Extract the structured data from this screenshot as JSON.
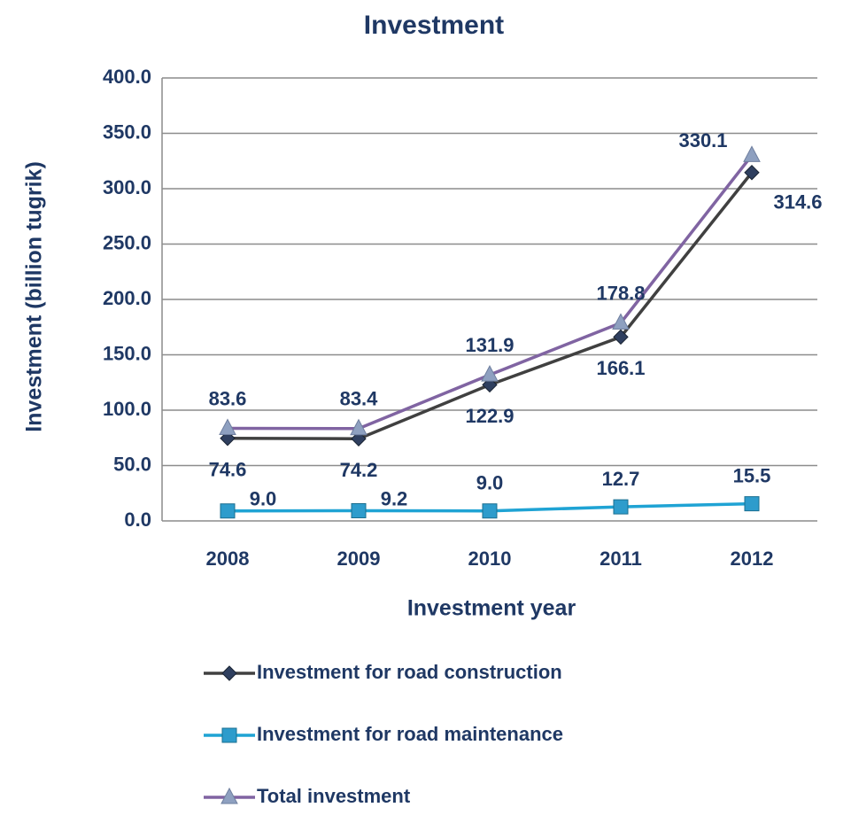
{
  "chart_data": {
    "type": "line",
    "title": "Investment",
    "x_label": "Investment year",
    "y_label": "Investment (billion tugrik)",
    "categories": [
      "2008",
      "2009",
      "2010",
      "2011",
      "2012"
    ],
    "series": [
      {
        "name": "Investment for road construction",
        "color": "#404040",
        "marker": "diamond",
        "marker_color": "#2f3f5f",
        "values": [
          74.6,
          74.2,
          122.9,
          166.1,
          314.6
        ]
      },
      {
        "name": "Investment for road maintenance",
        "color": "#1fa3d4",
        "marker": "square",
        "marker_color": "#2e9ccc",
        "values": [
          9,
          9.2,
          9,
          12.7,
          15.5
        ],
        "value_labels": [
          "9.0",
          "9.2",
          "9.0",
          "12.7",
          "15.5"
        ]
      },
      {
        "name": "Total investment",
        "color": "#8064a2",
        "marker": "triangle",
        "marker_color": "#8ea0c0",
        "values": [
          83.6,
          83.4,
          131.9,
          178.8,
          330.1
        ]
      }
    ],
    "ylim": [
      0,
      400
    ],
    "yticks": [
      {
        "value": 0,
        "label": "0.0"
      },
      {
        "value": 50,
        "label": "50.0"
      },
      {
        "value": 100,
        "label": "100.0"
      },
      {
        "value": 150,
        "label": "150.0"
      },
      {
        "value": 200,
        "label": "200.0"
      },
      {
        "value": 250,
        "label": "250.0"
      },
      {
        "value": 300,
        "label": "300.0"
      },
      {
        "value": 350,
        "label": "350.0"
      },
      {
        "value": 400,
        "label": "400.0"
      }
    ],
    "grid": true
  }
}
